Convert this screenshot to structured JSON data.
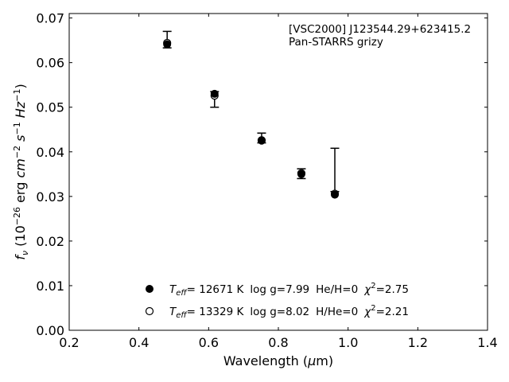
{
  "chart_data": {
    "type": "scatter",
    "title": "",
    "xlabel": "Wavelength (μm)",
    "ylabel": "fν (10⁻²⁶ erg cm⁻² s⁻¹ Hz⁻¹)",
    "xlim": [
      0.2,
      1.4
    ],
    "ylim": [
      0.0,
      0.071
    ],
    "xticks": [
      0.2,
      0.4,
      0.6,
      0.8,
      1.0,
      1.2,
      1.4
    ],
    "xtick_labels": [
      "0.2",
      "0.4",
      "0.6",
      "0.8",
      "1.0",
      "1.2",
      "1.4"
    ],
    "yticks": [
      0.0,
      0.01,
      0.02,
      0.03,
      0.04,
      0.05,
      0.06,
      0.07
    ],
    "ytick_labels": [
      "0.00",
      "0.01",
      "0.02",
      "0.03",
      "0.04",
      "0.05",
      "0.06",
      "0.07"
    ],
    "grid": false,
    "annotation": [
      "[VSC2000] J123544.29+623415.2",
      "Pan-STARRS grizy"
    ],
    "observed": {
      "x": [
        0.481,
        0.617,
        0.752,
        0.866,
        0.962
      ],
      "y": [
        0.0648,
        0.0525,
        0.043,
        0.035,
        0.0311
      ],
      "yerr_low": [
        0.0015,
        0.0025,
        0.001,
        0.001,
        0.0
      ],
      "yerr_high": [
        0.0022,
        0.001,
        0.0012,
        0.0012,
        0.0097
      ]
    },
    "series": [
      {
        "name": "Teff= 12671 K  log g=7.99  He/H=0  χ²=2.75",
        "marker": "filled-circle",
        "x": [
          0.481,
          0.617,
          0.752,
          0.866,
          0.962
        ],
        "y": [
          0.0641,
          0.053,
          0.0425,
          0.035,
          0.0304
        ]
      },
      {
        "name": "Teff= 13329 K  log g=8.02  H/He=0  χ²=2.21",
        "marker": "open-circle",
        "x": [
          0.481,
          0.617,
          0.752,
          0.866,
          0.962
        ],
        "y": [
          0.0644,
          0.0526,
          0.0426,
          0.0352,
          0.0306
        ]
      }
    ],
    "legend_position": "lower-center",
    "legend": [
      {
        "marker": "filled-circle",
        "teff_value": "= 12671 K",
        "logg": "log g=7.99",
        "comp": "He/H=0",
        "chi_value": "=2.75"
      },
      {
        "marker": "open-circle",
        "teff_value": "= 13329 K",
        "logg": "log g=8.02",
        "comp": "H/He=0",
        "chi_value": "=2.21"
      }
    ]
  }
}
